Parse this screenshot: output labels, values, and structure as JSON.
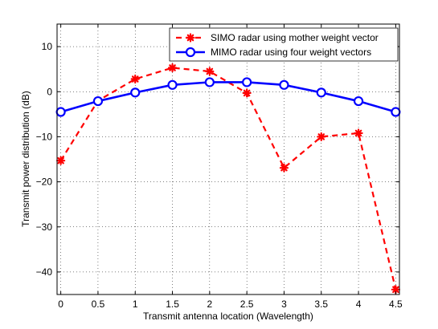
{
  "chart_data": {
    "type": "line",
    "title": "",
    "xlabel": "Transmit antenna location (Wavelength)",
    "ylabel": "Transmit power distribution (dB)",
    "xlim": [
      -0.05,
      4.55
    ],
    "ylim": [
      -45,
      15
    ],
    "xticks": [
      0,
      0.5,
      1,
      1.5,
      2,
      2.5,
      3,
      3.5,
      4,
      4.5
    ],
    "xtick_labels": [
      "0",
      "0.5",
      "1",
      "1.5",
      "2",
      "2.5",
      "3",
      "3.5",
      "4",
      "4.5"
    ],
    "yticks": [
      10,
      0,
      -10,
      -20,
      -30,
      -40
    ],
    "ytick_labels": [
      "10",
      "0",
      "−10",
      "−20",
      "−30",
      "−40"
    ],
    "grid": true,
    "legend_position": "top-right",
    "series": [
      {
        "name": "SIMO radar using mother weight vector",
        "color": "#ff0000",
        "line_style": "dashed",
        "marker": "asterisk",
        "x": [
          0,
          0.5,
          1,
          1.5,
          2,
          2.5,
          3,
          3.5,
          4,
          4.5
        ],
        "y": [
          -15.3,
          -2.0,
          2.8,
          5.3,
          4.5,
          -0.3,
          -16.9,
          -10.0,
          -9.2,
          -43.9
        ]
      },
      {
        "name": "MIMO radar using four weight vectors",
        "color": "#0000ff",
        "line_style": "solid",
        "marker": "circle",
        "x": [
          0,
          0.5,
          1,
          1.5,
          2,
          2.5,
          3,
          3.5,
          4,
          4.5
        ],
        "y": [
          -4.5,
          -2.1,
          -0.2,
          1.5,
          2.1,
          2.1,
          1.5,
          -0.2,
          -2.1,
          -4.5
        ]
      }
    ]
  }
}
